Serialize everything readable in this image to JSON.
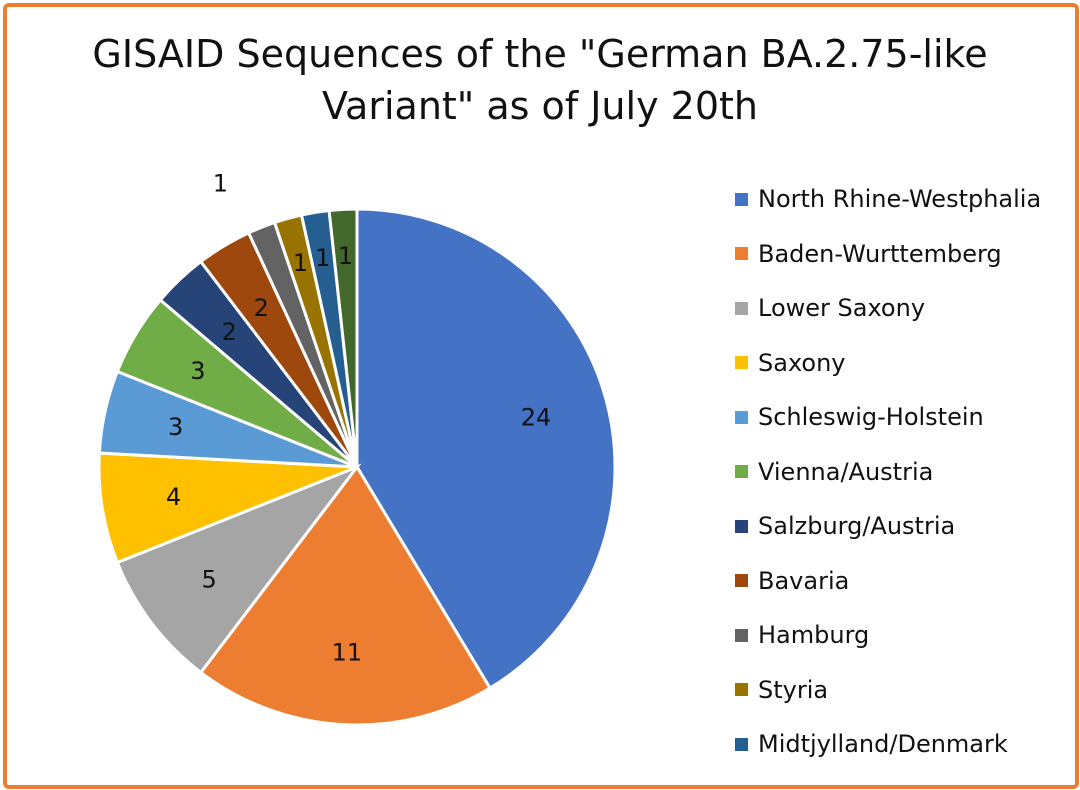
{
  "chart_data": {
    "type": "pie",
    "title_lines": [
      "GISAID Sequences of the \"German BA.2.75-like",
      "Variant\" as of July 20th"
    ],
    "categories": [
      "North Rhine-Westphalia",
      "Baden-Wurttemberg",
      "Lower Saxony",
      "Saxony",
      "Schleswig-Holstein",
      "Vienna/Austria",
      "Salzburg/Austria",
      "Bavaria",
      "Hamburg",
      "Styria",
      "Midtjylland/Denmark",
      ""
    ],
    "values": [
      24,
      11,
      5,
      4,
      3,
      3,
      2,
      2,
      1,
      1,
      1,
      1
    ],
    "data_labels": [
      "24",
      "11",
      "5",
      "4",
      "3",
      "3",
      "2",
      "2",
      "1",
      "1",
      "1",
      "1"
    ],
    "colors": [
      "#4472C4",
      "#ED7D31",
      "#A5A5A5",
      "#FFC000",
      "#5B9BD5",
      "#70AD47",
      "#264478",
      "#9E480E",
      "#636363",
      "#997300",
      "#255E91",
      "#43682B"
    ],
    "legend_position": "right",
    "legend_visible_count": 11
  }
}
